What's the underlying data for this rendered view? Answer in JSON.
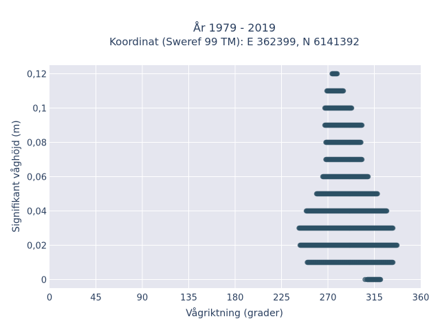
{
  "chart_data": {
    "type": "scatter",
    "title_line1": "År 1979 - 2019",
    "title_line2": "Koordinat (Sweref 99 TM): E 362399, N 6141392",
    "xlabel": "Vågriktning (grader)",
    "ylabel": "Signifikant våghöjd (m)",
    "xlim": [
      0,
      360
    ],
    "ylim": [
      -0.005,
      0.125
    ],
    "x_ticks": [
      0,
      45,
      90,
      135,
      180,
      225,
      270,
      315,
      360
    ],
    "x_tick_labels": [
      "0",
      "45",
      "90",
      "135",
      "180",
      "225",
      "270",
      "315",
      "360"
    ],
    "y_ticks": [
      0,
      0.02,
      0.04,
      0.06,
      0.08,
      0.1,
      0.12
    ],
    "y_tick_labels": [
      "0",
      "0,02",
      "0,04",
      "0,06",
      "0,08",
      "0,1",
      "0,12"
    ],
    "grid": true,
    "bands": [
      {
        "y": 0,
        "x_min": 306,
        "x_max": 321,
        "gap_x": [
          306,
          308
        ]
      },
      {
        "y": 0.01,
        "x_min": 250,
        "x_max": 333
      },
      {
        "y": 0.02,
        "x_min": 243,
        "x_max": 337
      },
      {
        "y": 0.03,
        "x_min": 242,
        "x_max": 333
      },
      {
        "y": 0.04,
        "x_min": 249,
        "x_max": 327
      },
      {
        "y": 0.05,
        "x_min": 259,
        "x_max": 318
      },
      {
        "y": 0.06,
        "x_min": 265,
        "x_max": 309
      },
      {
        "y": 0.07,
        "x_min": 268,
        "x_max": 303
      },
      {
        "y": 0.08,
        "x_min": 268,
        "x_max": 302
      },
      {
        "y": 0.09,
        "x_min": 267,
        "x_max": 303
      },
      {
        "y": 0.1,
        "x_min": 267,
        "x_max": 293
      },
      {
        "y": 0.11,
        "x_min": 269,
        "x_max": 285
      },
      {
        "y": 0.12,
        "x_min": 274,
        "x_max": 279
      }
    ],
    "colors": {
      "point": "#2e5166",
      "plot_bg": "#e5e6ef",
      "grid": "#ffffff",
      "text": "#2a3f5f"
    }
  }
}
